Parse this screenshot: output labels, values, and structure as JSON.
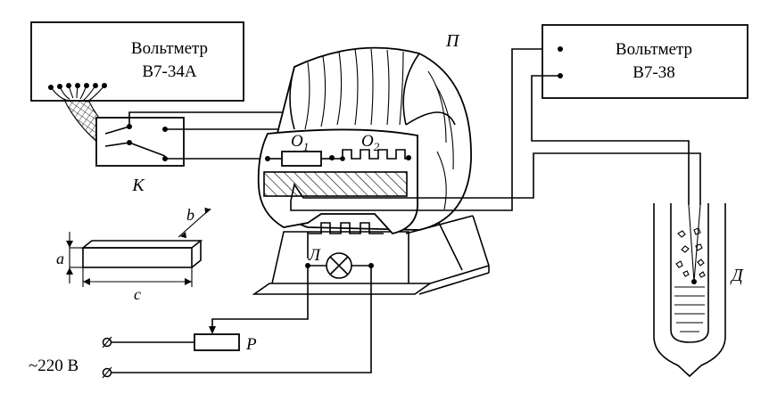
{
  "voltmeter_left": {
    "line1": "Вольтметр",
    "line2": "В7-34А"
  },
  "voltmeter_right": {
    "line1": "Вольтметр",
    "line2": "В7-38"
  },
  "labels": {
    "furnace": "П",
    "sample1": "O",
    "sample1_sub": "1",
    "sample2": "O",
    "sample2_sub": "2",
    "switch": "K",
    "lamp": "Л",
    "rheostat": "Р",
    "dewar": "Д",
    "dim_a": "a",
    "dim_b": "b",
    "dim_c": "c",
    "mains": "~220 В"
  }
}
